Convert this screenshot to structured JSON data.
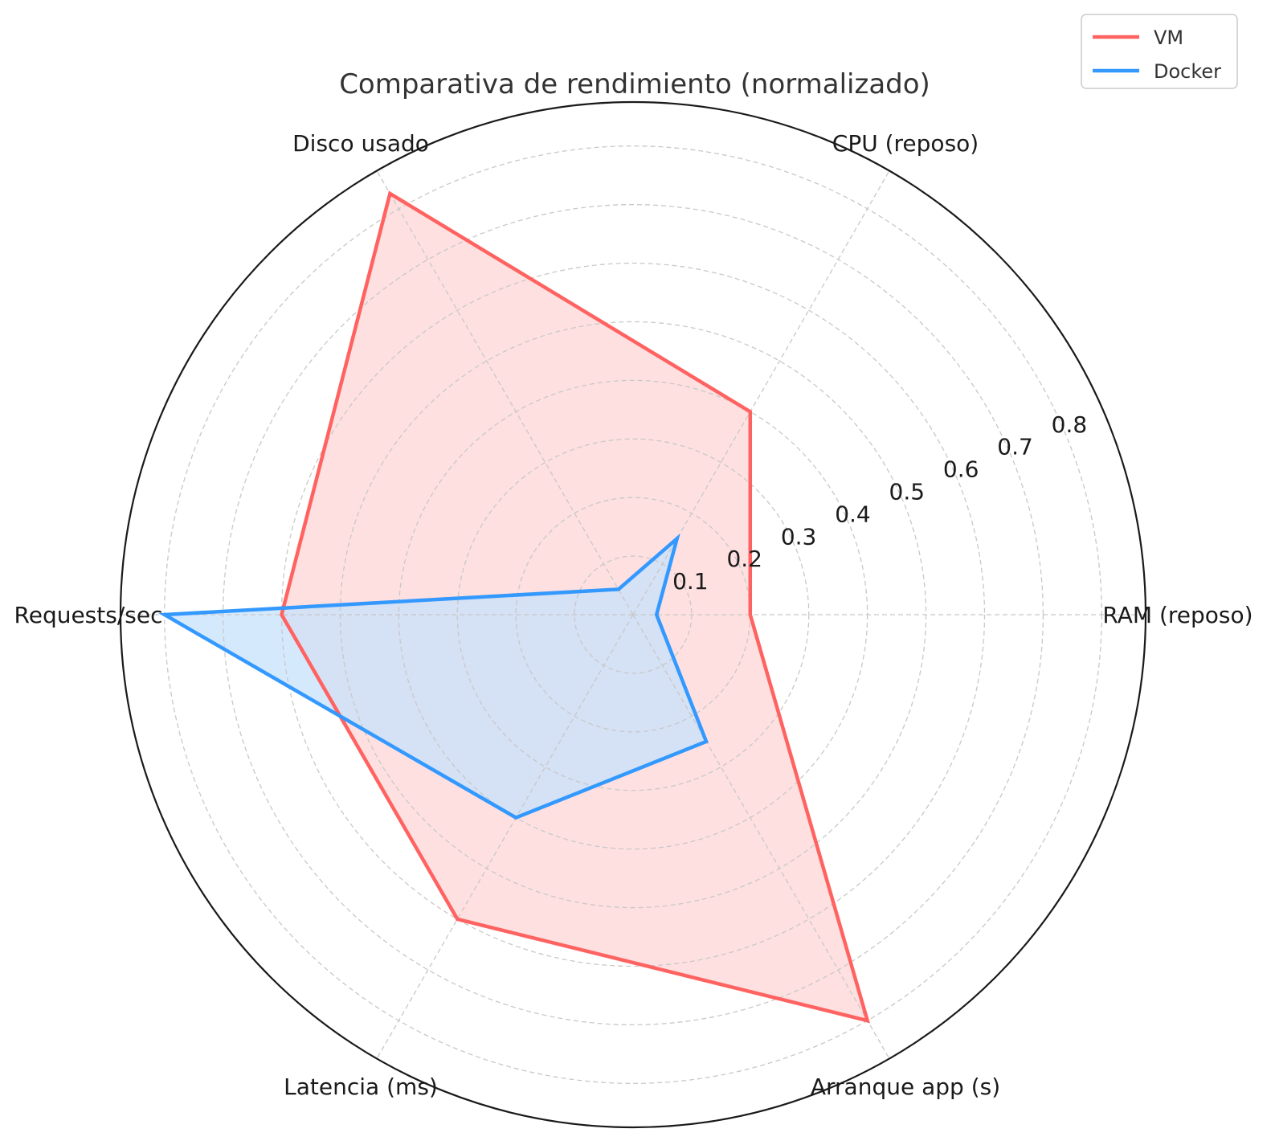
{
  "chart_data": {
    "type": "radar",
    "title": "Comparativa de rendimiento (normalizado)",
    "categories": [
      "RAM (reposo)",
      "CPU (reposo)",
      "Disco usado",
      "Requests/sec",
      "Latencia (ms)",
      "Arranque app (s)"
    ],
    "r_ticks": [
      0.1,
      0.2,
      0.3,
      0.4,
      0.5,
      0.6,
      0.7,
      0.8
    ],
    "r_tick_labels": [
      "0.1",
      "0.2",
      "0.3",
      "0.4",
      "0.5",
      "0.6",
      "0.7",
      "0.8"
    ],
    "rlim": [
      0,
      0.875
    ],
    "grid": true,
    "legend_position": "top-right",
    "series": [
      {
        "name": "VM",
        "color": "#ff6361",
        "fill": "#ffd6d6",
        "values": [
          0.2,
          0.4,
          0.83,
          0.6,
          0.6,
          0.8
        ]
      },
      {
        "name": "Docker",
        "color": "#3399ff",
        "fill": "#c7e1fc",
        "values": [
          0.04,
          0.15,
          0.05,
          0.8,
          0.4,
          0.25
        ]
      }
    ]
  }
}
